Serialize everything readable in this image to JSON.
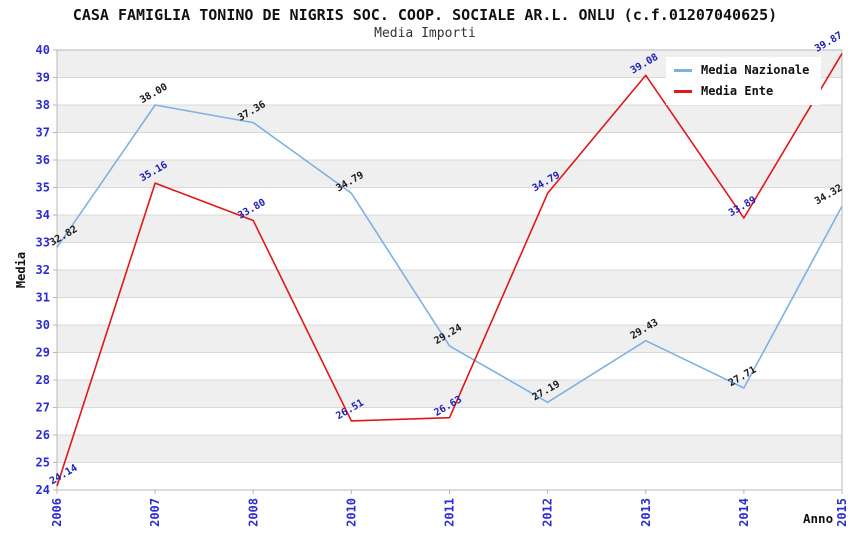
{
  "header": {
    "title": "CASA FAMIGLIA TONINO DE NIGRIS SOC. COOP. SOCIALE AR.L. ONLU (c.f.01207040625)",
    "subtitle": "Media Importi"
  },
  "chart_data": {
    "type": "line",
    "title": "CASA FAMIGLIA TONINO DE NIGRIS SOC. COOP. SOCIALE AR.L. ONLU (c.f.01207040625)",
    "subtitle": "Media Importi",
    "xlabel": "Anno",
    "ylabel": "Media",
    "categories": [
      "2006",
      "2007",
      "2008",
      "2010",
      "2011",
      "2012",
      "2013",
      "2014",
      "2015"
    ],
    "series": [
      {
        "name": "Media Nazionale",
        "color": "#7db1e3",
        "label_color": "#1a1a1a",
        "values": [
          32.82,
          38.0,
          37.36,
          34.79,
          29.24,
          27.19,
          29.43,
          27.71,
          34.32
        ]
      },
      {
        "name": "Media Ente",
        "color": "#e01818",
        "label_color": "#2020b8",
        "values": [
          24.14,
          35.16,
          33.8,
          26.51,
          26.63,
          34.79,
          39.08,
          33.89,
          39.87
        ]
      }
    ],
    "ylim": [
      24,
      40
    ],
    "ytick_step": 1,
    "grid": true,
    "banded": true,
    "legend_position": "top-right",
    "tick_label_color": "#2d2dd0",
    "band_color": "#efefef",
    "grid_color": "#d9d9d9",
    "axis_color": "#b9b9b9"
  },
  "legend": {
    "items": [
      {
        "label": "Media Nazionale",
        "color": "#7db1e3"
      },
      {
        "label": "Media Ente",
        "color": "#e01818"
      }
    ]
  }
}
